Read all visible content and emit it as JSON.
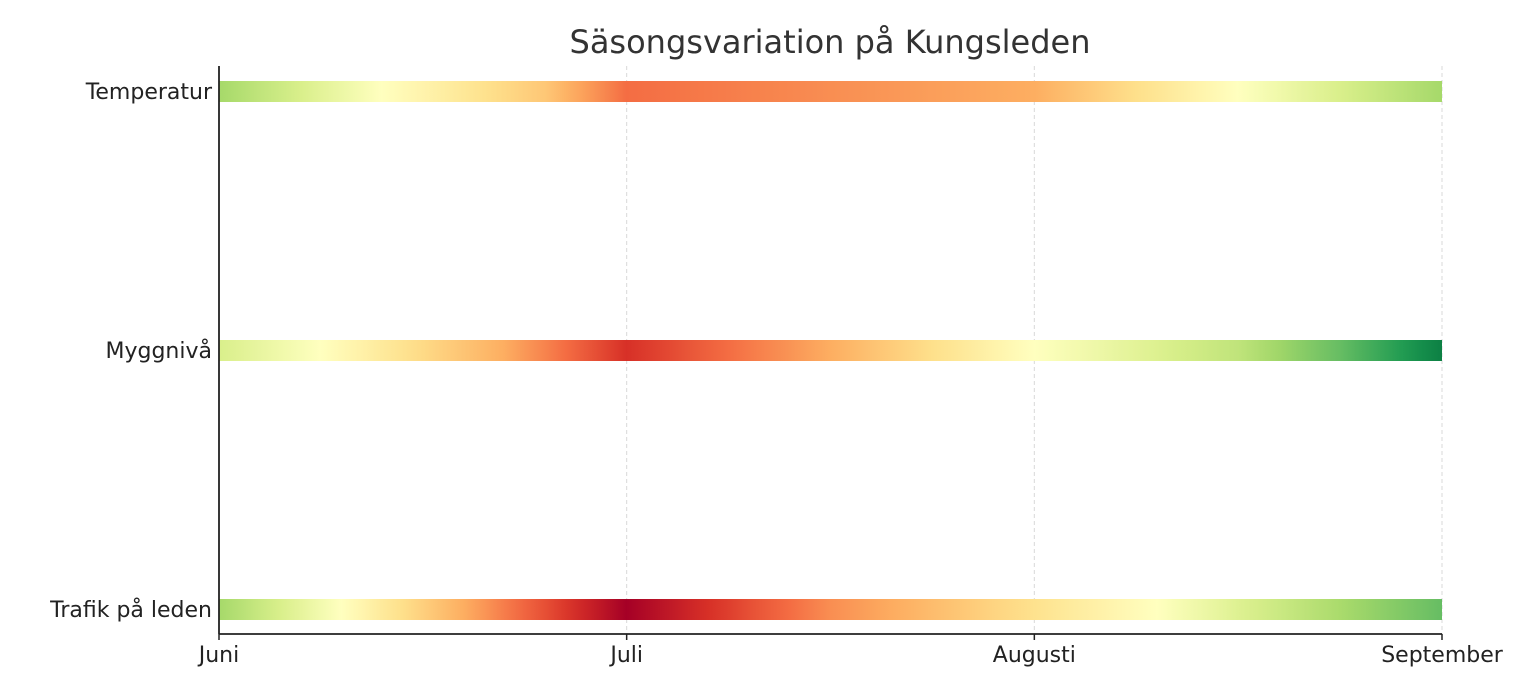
{
  "chart_data": {
    "type": "heatmap",
    "title": "Säsongsvariation på Kungsleden",
    "xlabel": "",
    "ylabel": "",
    "x_ticks": [
      "Juni",
      "Juli",
      "Augusti",
      "September"
    ],
    "xlim": [
      0,
      3
    ],
    "colormap": "RdYlGn_r",
    "colormap_colors": [
      "#006837",
      "#1a9850",
      "#66bd63",
      "#a6d96a",
      "#d9ef8b",
      "#ffffbf",
      "#fee08b",
      "#fdae61",
      "#f46d43",
      "#d73027",
      "#a50026"
    ],
    "grid": "vertical dashed",
    "series": [
      {
        "name": "Temperatur",
        "x": [
          0,
          0.4,
          0.8,
          1.0,
          2.0,
          2.5,
          3.0
        ],
        "values": [
          0.3,
          0.5,
          0.65,
          0.8,
          0.7,
          0.5,
          0.3
        ]
      },
      {
        "name": "Myggnivå",
        "x": [
          0,
          0.25,
          0.7,
          1.0,
          1.5,
          2.0,
          2.5,
          3.0
        ],
        "values": [
          0.4,
          0.5,
          0.7,
          0.9,
          0.7,
          0.5,
          0.35,
          0.05
        ]
      },
      {
        "name": "Trafik på leden",
        "x": [
          0,
          0.3,
          0.6,
          1.0,
          1.5,
          2.3,
          3.0
        ],
        "values": [
          0.3,
          0.5,
          0.7,
          1.0,
          0.75,
          0.5,
          0.2
        ]
      }
    ]
  }
}
